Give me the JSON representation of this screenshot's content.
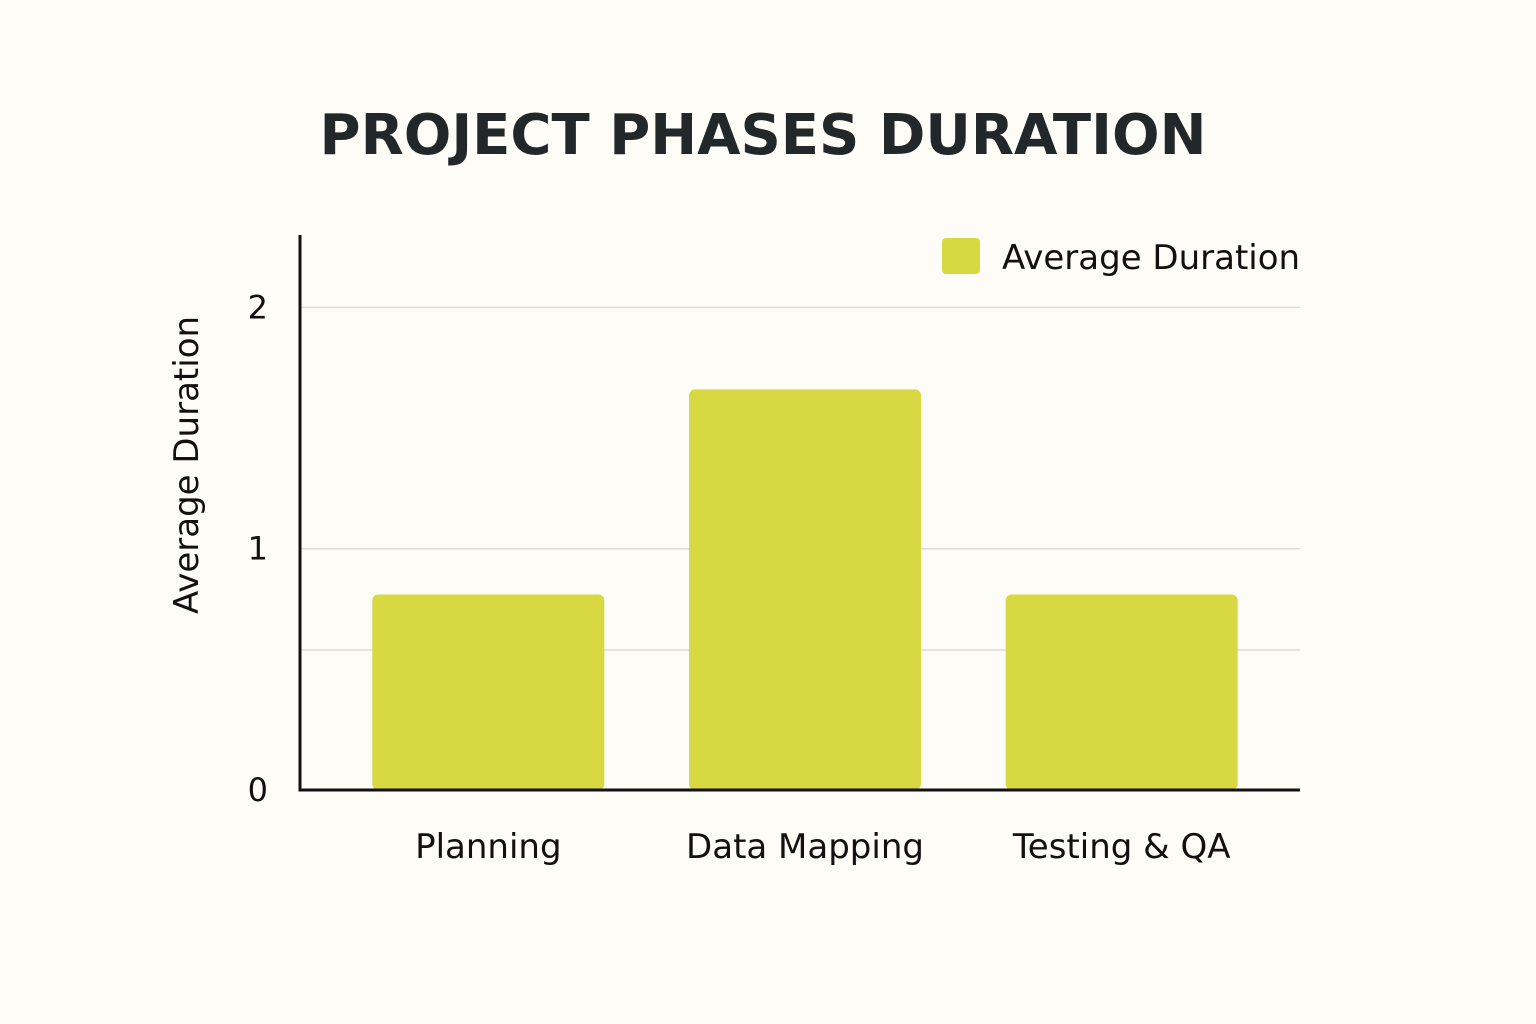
{
  "chart_data": {
    "type": "bar",
    "title": "PROJECT PHASES DURATION",
    "categories": [
      "Planning",
      "Data Mapping",
      "Testing & QA"
    ],
    "series": [
      {
        "name": "Average Duration",
        "values": [
          0.81,
          1.66,
          0.81
        ],
        "color": "#d8d942"
      }
    ],
    "xlabel": "",
    "ylabel": "Average Duration",
    "ylim": [
      0,
      2.3
    ],
    "yticks": [
      0,
      1,
      2
    ],
    "ytick_labels": [
      "0",
      "1",
      "2"
    ],
    "extra_gridlines": [
      0.58
    ],
    "grid": true,
    "legend_position": "top-right"
  }
}
